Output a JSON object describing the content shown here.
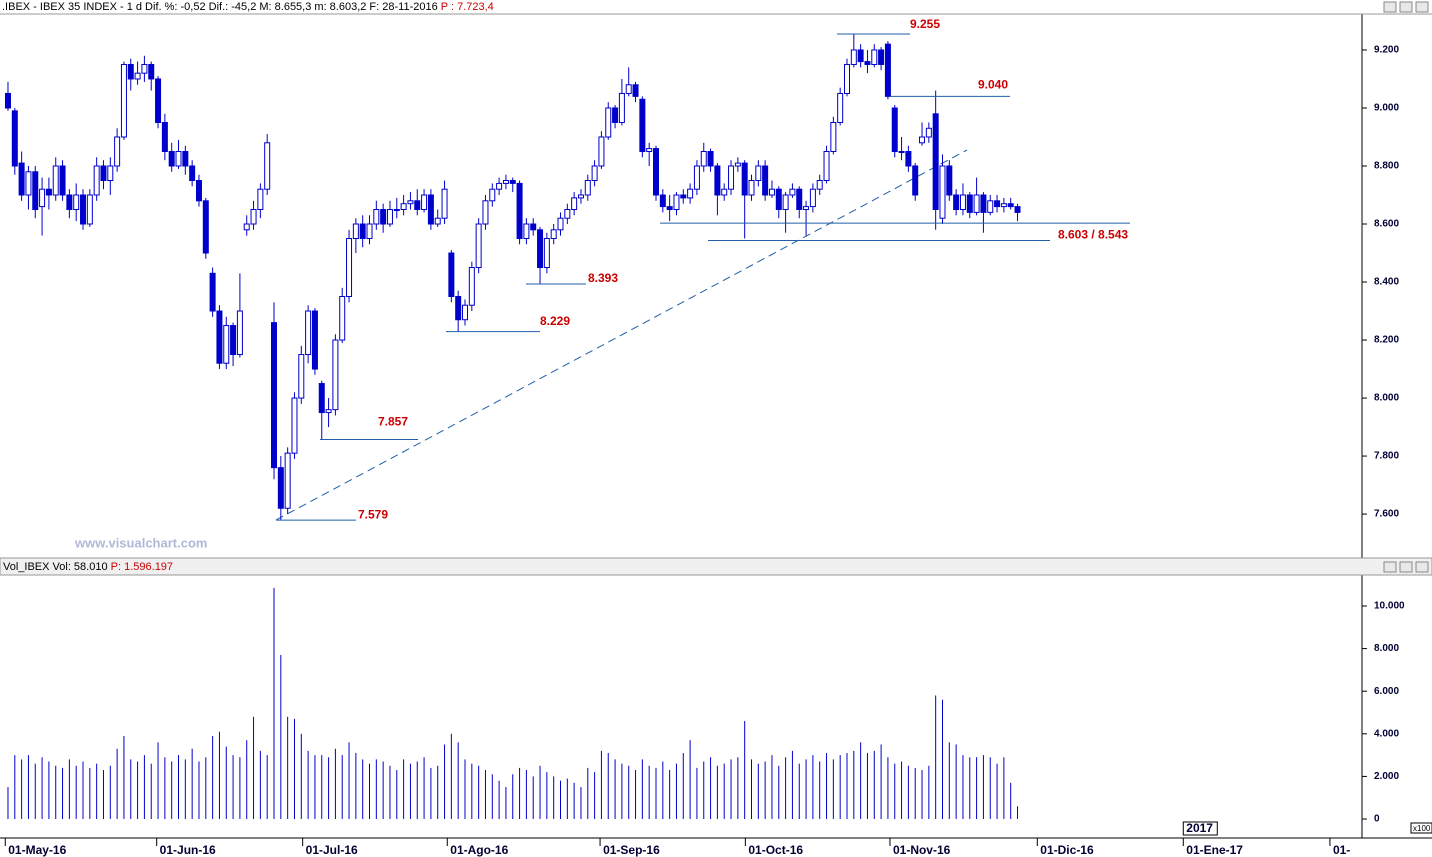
{
  "chart_data": [
    {
      "type": "candlestick",
      "title": ".IBEX - IBEX 35 INDEX - 1 d Dif. %: -0,52 Dif.: -45,2 M: 8.655,3 m: 8.603,2 F: 28-11-2016",
      "title_highlight": "P : 7.723,4",
      "watermark": "www.visualchart.com",
      "year_label": "2017",
      "color": "#0000cc",
      "xlim": [
        -1.17,
        198.5
      ],
      "xticks": [
        {
          "value": -0.4,
          "label": "01-May-16"
        },
        {
          "value": 21.8,
          "label": "01-Jun-16"
        },
        {
          "value": 43.2,
          "label": "01-Jul-16"
        },
        {
          "value": 64.4,
          "label": "01-Ago-16"
        },
        {
          "value": 86.8,
          "label": "01-Sep-16"
        },
        {
          "value": 108.1,
          "label": "01-Oct-16"
        },
        {
          "value": 129.3,
          "label": "01-Nov-16"
        },
        {
          "value": 150.9,
          "label": "01-Dic-16"
        },
        {
          "value": 172.3,
          "label": "01-Ene-17"
        },
        {
          "value": 193.8,
          "label": "01-"
        }
      ],
      "ylim": [
        7452,
        9324
      ],
      "yticks": [
        {
          "value": 9200,
          "label": "9.200"
        },
        {
          "value": 9000,
          "label": "9.000"
        },
        {
          "value": 8800,
          "label": "8.800"
        },
        {
          "value": 8600,
          "label": "8.600"
        },
        {
          "value": 8400,
          "label": "8.400"
        },
        {
          "value": 8200,
          "label": "8.200"
        },
        {
          "value": 8000,
          "label": "8.000"
        },
        {
          "value": 7800,
          "label": "7.800"
        },
        {
          "value": 7600,
          "label": "7.600"
        }
      ],
      "annotations": [
        {
          "label": "7.579",
          "values": [
            7579
          ]
        },
        {
          "label": "7.857",
          "values": [
            7857
          ]
        },
        {
          "label": "8.229",
          "values": [
            8229
          ]
        },
        {
          "label": "8.393",
          "values": [
            8393
          ]
        },
        {
          "label": "9.255",
          "values": [
            9255
          ]
        },
        {
          "label": "9.040",
          "values": [
            9040
          ]
        },
        {
          "label": "8.603 / 8.543",
          "values": [
            8603,
            8543
          ]
        }
      ],
      "ohlc": [
        [
          9050,
          9090,
          8990,
          9000
        ],
        [
          8990,
          9000,
          8770,
          8800
        ],
        [
          8810,
          8850,
          8680,
          8700
        ],
        [
          8700,
          8800,
          8650,
          8780
        ],
        [
          8780,
          8800,
          8620,
          8650
        ],
        [
          8660,
          8760,
          8560,
          8720
        ],
        [
          8720,
          8760,
          8650,
          8700
        ],
        [
          8700,
          8830,
          8680,
          8800
        ],
        [
          8800,
          8820,
          8680,
          8700
        ],
        [
          8700,
          8720,
          8620,
          8650
        ],
        [
          8650,
          8740,
          8610,
          8700
        ],
        [
          8700,
          8720,
          8580,
          8600
        ],
        [
          8600,
          8720,
          8590,
          8700
        ],
        [
          8700,
          8830,
          8680,
          8800
        ],
        [
          8800,
          8820,
          8720,
          8750
        ],
        [
          8750,
          8830,
          8700,
          8800
        ],
        [
          8800,
          8930,
          8780,
          8900
        ],
        [
          8900,
          9160,
          8890,
          9150
        ],
        [
          9150,
          9170,
          9060,
          9100
        ],
        [
          9100,
          9160,
          9080,
          9120
        ],
        [
          9120,
          9180,
          9090,
          9150
        ],
        [
          9150,
          9160,
          9060,
          9100
        ],
        [
          9100,
          9110,
          8930,
          8950
        ],
        [
          8950,
          8980,
          8820,
          8850
        ],
        [
          8850,
          8880,
          8780,
          8800
        ],
        [
          8800,
          8890,
          8790,
          8850
        ],
        [
          8850,
          8870,
          8770,
          8800
        ],
        [
          8800,
          8820,
          8730,
          8750
        ],
        [
          8750,
          8770,
          8660,
          8680
        ],
        [
          8680,
          8690,
          8480,
          8500
        ],
        [
          8430,
          8450,
          8280,
          8300
        ],
        [
          8300,
          8320,
          8100,
          8120
        ],
        [
          8120,
          8280,
          8100,
          8250
        ],
        [
          8250,
          8260,
          8110,
          8150
        ],
        [
          8150,
          8430,
          8140,
          8300
        ],
        [
          8580,
          8630,
          8560,
          8600
        ],
        [
          8600,
          8680,
          8580,
          8650
        ],
        [
          8650,
          8740,
          8620,
          8720
        ],
        [
          8720,
          8910,
          8700,
          8880
        ],
        [
          8260,
          8330,
          7720,
          7760
        ],
        [
          7760,
          7800,
          7579,
          7620
        ],
        [
          7620,
          7830,
          7600,
          7810
        ],
        [
          7810,
          8020,
          7790,
          8000
        ],
        [
          8000,
          8180,
          7980,
          8150
        ],
        [
          8150,
          8320,
          8120,
          8300
        ],
        [
          8300,
          8310,
          8080,
          8100
        ],
        [
          8050,
          8060,
          7857,
          7950
        ],
        [
          7950,
          8000,
          7900,
          7960
        ],
        [
          7960,
          8220,
          7940,
          8200
        ],
        [
          8200,
          8380,
          8190,
          8350
        ],
        [
          8350,
          8580,
          8330,
          8550
        ],
        [
          8550,
          8620,
          8500,
          8600
        ],
        [
          8600,
          8630,
          8520,
          8550
        ],
        [
          8550,
          8630,
          8530,
          8600
        ],
        [
          8600,
          8680,
          8580,
          8650
        ],
        [
          8650,
          8670,
          8570,
          8600
        ],
        [
          8600,
          8680,
          8590,
          8650
        ],
        [
          8650,
          8690,
          8620,
          8650
        ],
        [
          8650,
          8700,
          8630,
          8670
        ],
        [
          8670,
          8710,
          8650,
          8680
        ],
        [
          8680,
          8720,
          8630,
          8650
        ],
        [
          8650,
          8720,
          8640,
          8700
        ],
        [
          8700,
          8720,
          8580,
          8600
        ],
        [
          8600,
          8650,
          8590,
          8620
        ],
        [
          8620,
          8750,
          8600,
          8720
        ],
        [
          8500,
          8510,
          8330,
          8350
        ],
        [
          8350,
          8370,
          8229,
          8270
        ],
        [
          8270,
          8340,
          8250,
          8320
        ],
        [
          8320,
          8470,
          8300,
          8450
        ],
        [
          8450,
          8620,
          8430,
          8600
        ],
        [
          8600,
          8700,
          8580,
          8680
        ],
        [
          8680,
          8740,
          8660,
          8720
        ],
        [
          8720,
          8760,
          8700,
          8740
        ],
        [
          8740,
          8770,
          8720,
          8750
        ],
        [
          8750,
          8760,
          8710,
          8740
        ],
        [
          8740,
          8750,
          8530,
          8550
        ],
        [
          8550,
          8620,
          8530,
          8600
        ],
        [
          8600,
          8620,
          8560,
          8580
        ],
        [
          8580,
          8590,
          8393,
          8450
        ],
        [
          8450,
          8570,
          8430,
          8550
        ],
        [
          8550,
          8600,
          8530,
          8580
        ],
        [
          8580,
          8640,
          8560,
          8620
        ],
        [
          8620,
          8670,
          8600,
          8650
        ],
        [
          8650,
          8710,
          8630,
          8690
        ],
        [
          8690,
          8720,
          8670,
          8700
        ],
        [
          8700,
          8770,
          8680,
          8750
        ],
        [
          8750,
          8820,
          8730,
          8800
        ],
        [
          8800,
          8920,
          8790,
          8900
        ],
        [
          8900,
          9020,
          8890,
          9000
        ],
        [
          9000,
          9010,
          8930,
          8950
        ],
        [
          8950,
          9100,
          8940,
          9050
        ],
        [
          9050,
          9140,
          9040,
          9080
        ],
        [
          9080,
          9090,
          9020,
          9040
        ],
        [
          9030,
          9040,
          8830,
          8850
        ],
        [
          8850,
          8880,
          8800,
          8860
        ],
        [
          8860,
          8870,
          8680,
          8700
        ],
        [
          8700,
          8720,
          8640,
          8660
        ],
        [
          8660,
          8700,
          8610,
          8650
        ],
        [
          8650,
          8710,
          8630,
          8700
        ],
        [
          8700,
          8720,
          8670,
          8690
        ],
        [
          8690,
          8740,
          8670,
          8720
        ],
        [
          8720,
          8820,
          8700,
          8800
        ],
        [
          8800,
          8880,
          8780,
          8850
        ],
        [
          8850,
          8860,
          8780,
          8800
        ],
        [
          8800,
          8810,
          8630,
          8700
        ],
        [
          8700,
          8740,
          8680,
          8720
        ],
        [
          8720,
          8820,
          8700,
          8800
        ],
        [
          8800,
          8830,
          8780,
          8810
        ],
        [
          8810,
          8820,
          8550,
          8700
        ],
        [
          8700,
          8770,
          8680,
          8750
        ],
        [
          8750,
          8820,
          8730,
          8800
        ],
        [
          8800,
          8820,
          8680,
          8700
        ],
        [
          8700,
          8750,
          8690,
          8720
        ],
        [
          8720,
          8730,
          8620,
          8650
        ],
        [
          8650,
          8710,
          8570,
          8700
        ],
        [
          8700,
          8740,
          8690,
          8720
        ],
        [
          8720,
          8730,
          8620,
          8650
        ],
        [
          8650,
          8680,
          8560,
          8660
        ],
        [
          8660,
          8740,
          8640,
          8720
        ],
        [
          8720,
          8770,
          8700,
          8750
        ],
        [
          8750,
          8870,
          8740,
          8850
        ],
        [
          8850,
          8970,
          8840,
          8950
        ],
        [
          8950,
          9070,
          8940,
          9050
        ],
        [
          9050,
          9170,
          9040,
          9150
        ],
        [
          9150,
          9255,
          9140,
          9200
        ],
        [
          9200,
          9220,
          9140,
          9160
        ],
        [
          9160,
          9200,
          9120,
          9150
        ],
        [
          9150,
          9220,
          9140,
          9200
        ],
        [
          9200,
          9210,
          9130,
          9150
        ],
        [
          9220,
          9230,
          9030,
          9040
        ],
        [
          9000,
          9010,
          8830,
          8850
        ],
        [
          8850,
          8900,
          8820,
          8850
        ],
        [
          8850,
          8870,
          8780,
          8800
        ],
        [
          8800,
          8810,
          8680,
          8700
        ],
        [
          8880,
          8950,
          8870,
          8900
        ],
        [
          8900,
          8950,
          8880,
          8930
        ],
        [
          8980,
          9060,
          8580,
          8650
        ],
        [
          8620,
          8840,
          8600,
          8800
        ],
        [
          8800,
          8820,
          8680,
          8700
        ],
        [
          8700,
          8720,
          8630,
          8650
        ],
        [
          8650,
          8740,
          8630,
          8700
        ],
        [
          8700,
          8710,
          8620,
          8640
        ],
        [
          8640,
          8760,
          8630,
          8700
        ],
        [
          8700,
          8710,
          8570,
          8640
        ],
        [
          8640,
          8700,
          8630,
          8680
        ],
        [
          8680,
          8700,
          8640,
          8660
        ],
        [
          8660,
          8690,
          8640,
          8670
        ],
        [
          8670,
          8690,
          8650,
          8660
        ],
        [
          8660,
          8670,
          8610,
          8640
        ]
      ]
    },
    {
      "type": "bar",
      "title": "Vol_IBEX Vol: 58.010",
      "title_highlight": "P: 1.596.197",
      "unit_label": "x100",
      "color": "#0000cc",
      "ylim": [
        -750,
        11455
      ],
      "yticks": [
        {
          "value": 10000,
          "label": "10.000"
        },
        {
          "value": 8000,
          "label": "8.000"
        },
        {
          "value": 6000,
          "label": "6.000"
        },
        {
          "value": 4000,
          "label": "4.000"
        },
        {
          "value": 2000,
          "label": "2.000"
        },
        0
      ],
      "values": [
        1500,
        3000,
        2800,
        3000,
        2600,
        2900,
        2700,
        2500,
        2400,
        2800,
        2500,
        2700,
        2400,
        2600,
        2300,
        2500,
        3300,
        3900,
        2800,
        2700,
        3000,
        2600,
        3600,
        2900,
        2700,
        3000,
        2800,
        3300,
        2700,
        2900,
        3900,
        4100,
        3400,
        3000,
        2900,
        3700,
        4800,
        3200,
        3000,
        10850,
        7700,
        4800,
        4700,
        4000,
        3200,
        3000,
        3000,
        2900,
        3300,
        3000,
        3600,
        3100,
        2800,
        2600,
        2800,
        2700,
        2500,
        2300,
        2800,
        2600,
        2700,
        2900,
        2400,
        2500,
        3500,
        4000,
        3600,
        2800,
        2600,
        2500,
        2300,
        2100,
        1800,
        1500,
        2100,
        2400,
        2300,
        2000,
        2500,
        2200,
        2000,
        1800,
        1900,
        1700,
        1500,
        2400,
        2200,
        3200,
        3100,
        2800,
        2600,
        2500,
        2300,
        2800,
        2500,
        2400,
        2700,
        2300,
        2600,
        3100,
        3700,
        2400,
        2700,
        2900,
        2500,
        2600,
        2800,
        2900,
        4600,
        2800,
        2600,
        2700,
        3000,
        2500,
        2900,
        3200,
        2600,
        2800,
        3000,
        2700,
        3100,
        2800,
        3000,
        3100,
        3200,
        3600,
        3100,
        3200,
        3500,
        2900,
        2600,
        2700,
        2500,
        2400,
        2300,
        2500,
        5800,
        5600,
        3600,
        3500,
        3000,
        2900,
        2900,
        3000,
        2900,
        2600,
        2900,
        1700,
        600
      ]
    }
  ]
}
